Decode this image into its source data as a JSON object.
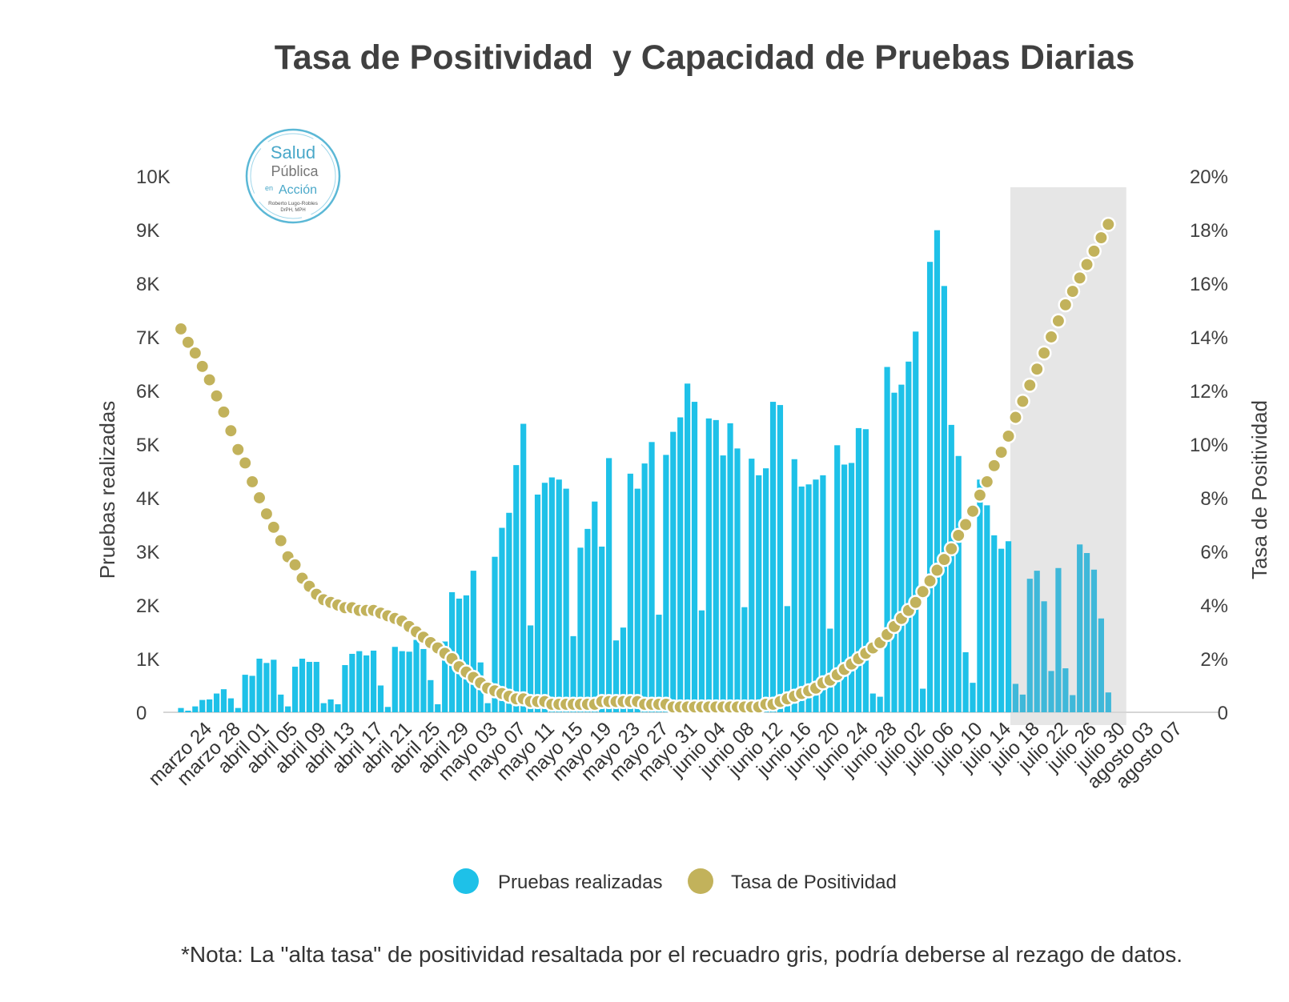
{
  "title": "Tasa de Positividad  y Capacidad de Pruebas Diarias",
  "note": "*Nota: La \"alta tasa\" de positividad resaltada por el recuadro gris, podría deberse al rezago de datos.",
  "logo": {
    "line1": "Salud",
    "line2": "Pública",
    "line3": "en",
    "line4": "Acción",
    "line5": "Roberto Lugo-Robles",
    "line6": "DrPH, MPH"
  },
  "colors": {
    "bars": "#1ec1e8",
    "dots": "#c2b25b",
    "highlight": "#e6e6e6",
    "text": "#404040"
  },
  "chart_data": {
    "type": "bar+scatter",
    "ylabel_left": "Pruebas realizadas",
    "ylabel_right": "Tasa de Positividad",
    "y_left_ticks": [
      "0",
      "1K",
      "2K",
      "3K",
      "4K",
      "5K",
      "6K",
      "7K",
      "8K",
      "9K",
      "10K"
    ],
    "y_right_ticks": [
      "0",
      "2%",
      "4%",
      "6%",
      "8%",
      "10%",
      "12%",
      "14%",
      "16%",
      "18%",
      "20%"
    ],
    "ylim_left": [
      0,
      10000
    ],
    "ylim_right": [
      0,
      20
    ],
    "x_tick_labels": [
      "marzo 24",
      "marzo 28",
      "abril 01",
      "abril 05",
      "abril 09",
      "abril 13",
      "abril 17",
      "abril 21",
      "abril 25",
      "abril 29",
      "mayo 03",
      "mayo 07",
      "mayo 11",
      "mayo 15",
      "mayo 19",
      "mayo 23",
      "mayo 27",
      "mayo 31",
      "junio 04",
      "junio 08",
      "junio 12",
      "junio 16",
      "junio 20",
      "junio 24",
      "junio 28",
      "julio 02",
      "julio 06",
      "julio 10",
      "julio 14",
      "julio 18",
      "julio 22",
      "julio 26",
      "julio 30",
      "agosto 03",
      "agosto 07"
    ],
    "highlight_range_days": [
      "julio 19",
      "agosto 09"
    ],
    "legend": [
      {
        "label": "Pruebas realizadas",
        "color": "#1ec1e8"
      },
      {
        "label": "Tasa de Positividad",
        "color": "#c2b25b"
      }
    ],
    "series": [
      {
        "name": "Pruebas realizadas",
        "axis": "left",
        "values": [
          80,
          30,
          110,
          230,
          240,
          350,
          430,
          260,
          80,
          700,
          680,
          1000,
          920,
          980,
          330,
          110,
          850,
          1000,
          940,
          940,
          170,
          240,
          150,
          880,
          1090,
          1140,
          1060,
          1150,
          500,
          100,
          1220,
          1140,
          1130,
          1350,
          1180,
          600,
          150,
          1320,
          2240,
          2120,
          2180,
          2640,
          930,
          170,
          2900,
          3440,
          3720,
          4610,
          5380,
          1620,
          4060,
          4280,
          4380,
          4340,
          4170,
          1420,
          3070,
          3420,
          3930,
          3090,
          4740,
          1340,
          1580,
          4450,
          4170,
          4640,
          5040,
          1820,
          4800,
          5230,
          5500,
          6130,
          5790,
          1900,
          5480,
          5450,
          4790,
          5390,
          4920,
          1960,
          4730,
          4420,
          4550,
          5790,
          5730,
          1980,
          4720,
          4210,
          4250,
          4340,
          4420,
          1560,
          4980,
          4620,
          4650,
          5300,
          5280,
          350,
          290,
          6440,
          5960,
          6110,
          6540,
          7100,
          440,
          8400,
          8990,
          7950,
          5360,
          4780,
          1120,
          550,
          4340,
          3860,
          3300,
          3050,
          3190,
          530,
          330,
          2490,
          2640,
          2070,
          770,
          2690,
          820,
          320,
          3130,
          2970,
          2660,
          1750,
          370
        ]
      },
      {
        "name": "Tasa de Positividad",
        "axis": "right",
        "values": [
          14.3,
          13.8,
          13.4,
          12.9,
          12.4,
          11.8,
          11.2,
          10.5,
          9.8,
          9.3,
          8.6,
          8.0,
          7.4,
          6.9,
          6.4,
          5.8,
          5.5,
          5.0,
          4.7,
          4.4,
          4.2,
          4.1,
          4.0,
          3.9,
          3.9,
          3.8,
          3.8,
          3.8,
          3.7,
          3.6,
          3.5,
          3.4,
          3.2,
          3.0,
          2.8,
          2.6,
          2.4,
          2.2,
          2.0,
          1.7,
          1.5,
          1.3,
          1.1,
          0.9,
          0.8,
          0.7,
          0.6,
          0.5,
          0.5,
          0.4,
          0.4,
          0.4,
          0.3,
          0.3,
          0.3,
          0.3,
          0.3,
          0.3,
          0.3,
          0.4,
          0.4,
          0.4,
          0.4,
          0.4,
          0.4,
          0.3,
          0.3,
          0.3,
          0.3,
          0.2,
          0.2,
          0.2,
          0.2,
          0.2,
          0.2,
          0.2,
          0.2,
          0.2,
          0.2,
          0.2,
          0.2,
          0.2,
          0.3,
          0.3,
          0.4,
          0.5,
          0.6,
          0.7,
          0.8,
          0.9,
          1.1,
          1.2,
          1.4,
          1.6,
          1.8,
          2.0,
          2.2,
          2.4,
          2.6,
          2.9,
          3.2,
          3.5,
          3.8,
          4.1,
          4.5,
          4.9,
          5.3,
          5.7,
          6.1,
          6.6,
          7.0,
          7.5,
          8.1,
          8.6,
          9.2,
          9.7,
          10.3,
          11.0,
          11.6,
          12.2,
          12.8,
          13.4,
          14.0,
          14.6,
          15.2,
          15.7,
          16.2,
          16.7,
          17.2,
          17.7,
          18.2
        ]
      }
    ]
  }
}
